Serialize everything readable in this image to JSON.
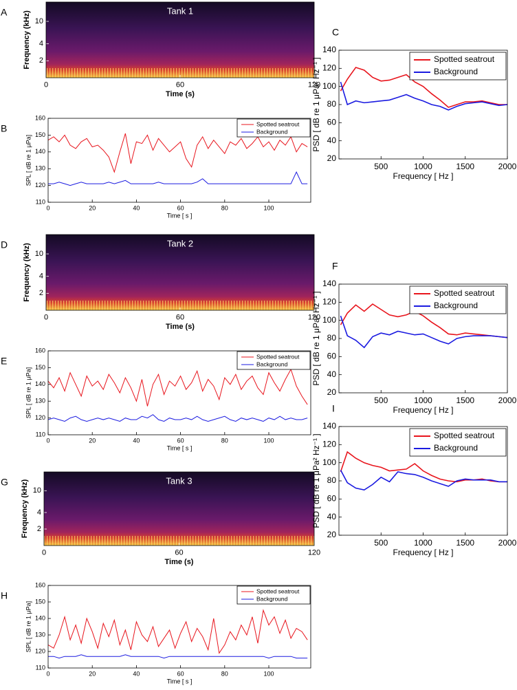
{
  "chart_data": [
    {
      "type": "spectrogram",
      "panel": "A",
      "title": "Tank 1",
      "xlabel": "Time (s)",
      "ylabel": "Frequency (kHz)",
      "xlim": [
        0,
        120
      ],
      "xticks": [
        0,
        60,
        120
      ],
      "ylim": [
        1,
        22
      ],
      "yticks": [
        2,
        4,
        10
      ],
      "ylog": true
    },
    {
      "type": "line",
      "panel": "B",
      "xlabel": "Time [ s ]",
      "ylabel": "SPL [ dB re 1 μPa]",
      "xlim": [
        0,
        119
      ],
      "xticks": [
        0,
        20,
        40,
        60,
        80,
        100
      ],
      "ylim": [
        110,
        160
      ],
      "yticks": [
        110,
        120,
        130,
        140,
        150,
        160
      ],
      "x": [
        0,
        2.5,
        5,
        7.5,
        10,
        12.5,
        15,
        17.5,
        20,
        22.5,
        25,
        27.5,
        30,
        32.5,
        35,
        37.5,
        40,
        42.5,
        45,
        47.5,
        50,
        52.5,
        55,
        57.5,
        60,
        62.5,
        65,
        67.5,
        70,
        72.5,
        75,
        77.5,
        80,
        82.5,
        85,
        87.5,
        90,
        92.5,
        95,
        97.5,
        100,
        102.5,
        105,
        107.5,
        110,
        112.5,
        115,
        117.5
      ],
      "series": [
        {
          "name": "Spotted seatrout",
          "color": "#e8141c",
          "values": [
            147,
            149,
            146,
            150,
            144,
            142,
            146,
            148,
            143,
            144,
            141,
            137,
            128,
            140,
            151,
            133,
            146,
            145,
            150,
            141,
            148,
            144,
            140,
            143,
            146,
            136,
            131,
            144,
            149,
            142,
            147,
            143,
            139,
            146,
            144,
            148,
            142,
            145,
            149,
            143,
            146,
            141,
            147,
            144,
            149,
            140,
            145,
            143
          ]
        },
        {
          "name": "Background",
          "color": "#1a1ae0",
          "values": [
            121,
            121,
            122,
            121,
            120,
            121,
            122,
            121,
            121,
            121,
            121,
            122,
            121,
            122,
            123,
            121,
            121,
            121,
            121,
            121,
            122,
            121,
            121,
            121,
            121,
            121,
            121,
            122,
            124,
            121,
            121,
            121,
            121,
            121,
            121,
            121,
            121,
            121,
            121,
            121,
            121,
            121,
            121,
            121,
            121,
            128,
            121,
            121
          ]
        }
      ]
    },
    {
      "type": "line",
      "panel": "C",
      "xlabel": "Frequency [ Hz ]",
      "ylabel": "PSD [ dB re 1 μPa² Hz⁻¹ ]",
      "xlim": [
        0,
        2000
      ],
      "xticks": [
        500,
        1000,
        1500,
        2000
      ],
      "ylim": [
        20,
        140
      ],
      "yticks": [
        20,
        40,
        60,
        80,
        100,
        120,
        140
      ],
      "x": [
        20,
        100,
        200,
        300,
        400,
        500,
        600,
        700,
        800,
        900,
        1000,
        1100,
        1200,
        1300,
        1400,
        1500,
        1600,
        1700,
        1800,
        1900,
        2000
      ],
      "series": [
        {
          "name": "Spotted seatrout",
          "color": "#e8141c",
          "values": [
            95,
            108,
            121,
            118,
            110,
            106,
            107,
            110,
            113,
            105,
            100,
            92,
            85,
            77,
            80,
            83,
            83,
            84,
            82,
            80,
            80
          ]
        },
        {
          "name": "Background",
          "color": "#1a1ae0",
          "values": [
            105,
            80,
            84,
            82,
            83,
            84,
            85,
            88,
            91,
            87,
            84,
            80,
            78,
            74,
            78,
            81,
            82,
            83,
            81,
            79,
            80
          ]
        }
      ]
    },
    {
      "type": "spectrogram",
      "panel": "D",
      "title": "Tank 2",
      "xlabel": "Time (s)",
      "ylabel": "Frequency (kHz)",
      "xlim": [
        0,
        120
      ],
      "xticks": [
        0,
        60,
        120
      ],
      "ylim": [
        1,
        22
      ],
      "yticks": [
        2,
        4,
        10
      ],
      "ylog": true
    },
    {
      "type": "line",
      "panel": "E",
      "xlabel": "Time [ s ]",
      "ylabel": "SPL [ dB re 1 μPa]",
      "xlim": [
        0,
        119
      ],
      "xticks": [
        0,
        20,
        40,
        60,
        80,
        100
      ],
      "ylim": [
        110,
        160
      ],
      "yticks": [
        110,
        120,
        130,
        140,
        150,
        160
      ],
      "x": [
        0,
        2.5,
        5,
        7.5,
        10,
        12.5,
        15,
        17.5,
        20,
        22.5,
        25,
        27.5,
        30,
        32.5,
        35,
        37.5,
        40,
        42.5,
        45,
        47.5,
        50,
        52.5,
        55,
        57.5,
        60,
        62.5,
        65,
        67.5,
        70,
        72.5,
        75,
        77.5,
        80,
        82.5,
        85,
        87.5,
        90,
        92.5,
        95,
        97.5,
        100,
        102.5,
        105,
        107.5,
        110,
        112.5,
        115,
        117.5
      ],
      "series": [
        {
          "name": "Spotted seatrout",
          "color": "#e8141c",
          "values": [
            142,
            138,
            144,
            136,
            147,
            140,
            133,
            145,
            139,
            142,
            137,
            146,
            141,
            135,
            144,
            138,
            130,
            143,
            127,
            140,
            146,
            134,
            142,
            139,
            145,
            137,
            141,
            148,
            136,
            143,
            139,
            131,
            144,
            140,
            146,
            137,
            142,
            145,
            138,
            134,
            147,
            141,
            136,
            143,
            149,
            139,
            133,
            128
          ]
        },
        {
          "name": "Background",
          "color": "#1a1ae0",
          "values": [
            119,
            120,
            119,
            118,
            120,
            121,
            119,
            118,
            119,
            120,
            119,
            120,
            119,
            118,
            120,
            119,
            119,
            121,
            120,
            122,
            119,
            118,
            120,
            119,
            119,
            120,
            119,
            121,
            119,
            118,
            119,
            120,
            121,
            119,
            118,
            120,
            119,
            120,
            119,
            118,
            120,
            119,
            121,
            119,
            120,
            119,
            119,
            120
          ]
        }
      ]
    },
    {
      "type": "line",
      "panel": "F",
      "xlabel": "Frequency [ Hz ]",
      "ylabel": "PSD [ dB re 1 μPa² Hz⁻¹ ]",
      "xlim": [
        0,
        2000
      ],
      "xticks": [
        500,
        1000,
        1500,
        2000
      ],
      "ylim": [
        20,
        140
      ],
      "yticks": [
        20,
        40,
        60,
        80,
        100,
        120,
        140
      ],
      "x": [
        20,
        100,
        200,
        300,
        400,
        500,
        600,
        700,
        800,
        900,
        1000,
        1100,
        1200,
        1300,
        1400,
        1500,
        1600,
        1700,
        1800,
        1900,
        2000
      ],
      "series": [
        {
          "name": "Spotted seatrout",
          "color": "#e8141c",
          "values": [
            95,
            108,
            117,
            110,
            118,
            112,
            106,
            104,
            106,
            110,
            105,
            98,
            92,
            85,
            84,
            86,
            85,
            84,
            83,
            82,
            81
          ]
        },
        {
          "name": "Background",
          "color": "#1a1ae0",
          "values": [
            105,
            83,
            78,
            70,
            82,
            86,
            84,
            88,
            86,
            84,
            85,
            81,
            77,
            74,
            80,
            82,
            83,
            83,
            83,
            82,
            81
          ]
        }
      ]
    },
    {
      "type": "spectrogram",
      "panel": "G",
      "title": "Tank 3",
      "xlabel": "Time (s)",
      "ylabel": "Frequency (kHz)",
      "xlim": [
        0,
        120
      ],
      "xticks": [
        0,
        60,
        120
      ],
      "ylim": [
        1,
        22
      ],
      "yticks": [
        2,
        4,
        10
      ],
      "ylog": true
    },
    {
      "type": "line",
      "panel": "H",
      "xlabel": "Time [ s ]",
      "ylabel": "SPL [ dB re 1 μPa]",
      "xlim": [
        0,
        119
      ],
      "xticks": [
        0,
        20,
        40,
        60,
        80,
        100
      ],
      "ylim": [
        110,
        160
      ],
      "yticks": [
        110,
        120,
        130,
        140,
        150,
        160
      ],
      "x": [
        0,
        2.5,
        5,
        7.5,
        10,
        12.5,
        15,
        17.5,
        20,
        22.5,
        25,
        27.5,
        30,
        32.5,
        35,
        37.5,
        40,
        42.5,
        45,
        47.5,
        50,
        52.5,
        55,
        57.5,
        60,
        62.5,
        65,
        67.5,
        70,
        72.5,
        75,
        77.5,
        80,
        82.5,
        85,
        87.5,
        90,
        92.5,
        95,
        97.5,
        100,
        102.5,
        105,
        107.5,
        110,
        112.5,
        115,
        117.5
      ],
      "series": [
        {
          "name": "Spotted seatrout",
          "color": "#e8141c",
          "values": [
            124,
            122,
            130,
            141,
            127,
            136,
            125,
            140,
            132,
            122,
            137,
            129,
            139,
            124,
            133,
            121,
            138,
            130,
            126,
            135,
            123,
            128,
            133,
            122,
            131,
            138,
            126,
            134,
            129,
            121,
            140,
            119,
            124,
            132,
            127,
            136,
            130,
            141,
            125,
            145,
            136,
            141,
            131,
            139,
            128,
            134,
            132,
            127
          ]
        },
        {
          "name": "Background",
          "color": "#1a1ae0",
          "values": [
            117,
            117,
            116,
            117,
            117,
            117,
            118,
            117,
            117,
            117,
            117,
            117,
            117,
            117,
            118,
            117,
            117,
            117,
            117,
            117,
            117,
            116,
            117,
            117,
            117,
            117,
            117,
            117,
            117,
            117,
            117,
            117,
            117,
            117,
            117,
            117,
            117,
            117,
            117,
            117,
            116,
            117,
            117,
            117,
            117,
            116,
            116,
            116
          ]
        }
      ]
    },
    {
      "type": "line",
      "panel": "I",
      "xlabel": "Frequency [ Hz ]",
      "ylabel": "PSD [ dB re 1 μPa² Hz⁻¹ ]",
      "xlim": [
        0,
        2000
      ],
      "xticks": [
        500,
        1000,
        1500,
        2000
      ],
      "ylim": [
        20,
        140
      ],
      "yticks": [
        20,
        40,
        60,
        80,
        100,
        120,
        140
      ],
      "x": [
        20,
        100,
        200,
        300,
        400,
        500,
        600,
        700,
        800,
        900,
        1000,
        1100,
        1200,
        1300,
        1400,
        1500,
        1600,
        1700,
        1800,
        1900,
        2000
      ],
      "series": [
        {
          "name": "Spotted seatrout",
          "color": "#e8141c",
          "values": [
            90,
            112,
            105,
            100,
            97,
            95,
            91,
            92,
            93,
            99,
            91,
            86,
            82,
            80,
            79,
            81,
            81,
            82,
            80,
            79,
            79
          ]
        },
        {
          "name": "Background",
          "color": "#1a1ae0",
          "values": [
            92,
            78,
            72,
            70,
            76,
            84,
            79,
            90,
            88,
            87,
            84,
            80,
            77,
            74,
            80,
            82,
            81,
            81,
            81,
            79,
            79
          ]
        }
      ]
    }
  ]
}
